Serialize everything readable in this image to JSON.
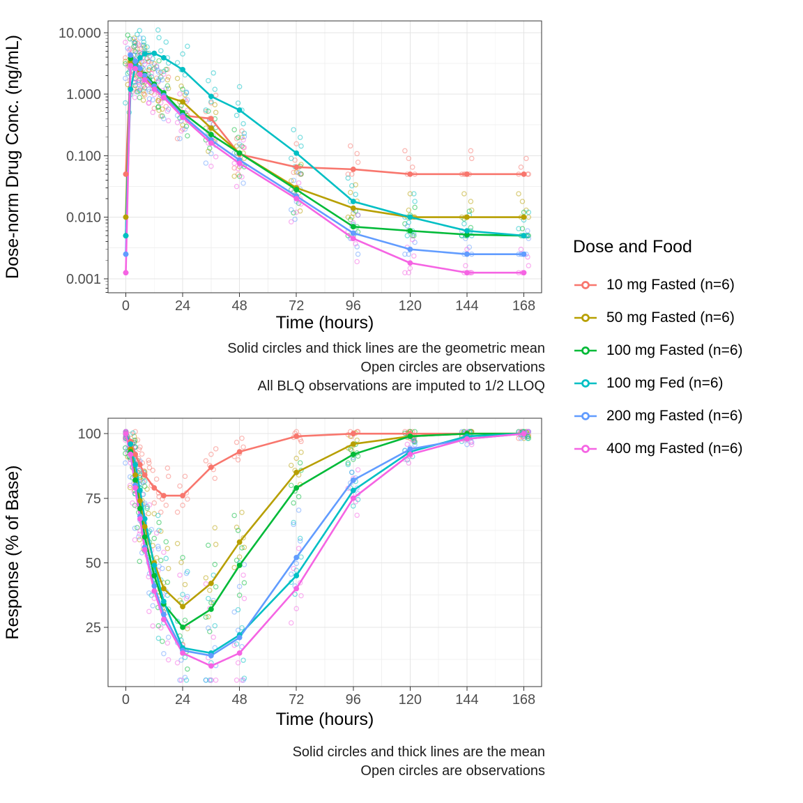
{
  "legend": {
    "title": "Dose and Food",
    "entries": [
      {
        "label": "10 mg Fasted (n=6)",
        "color": "#F8766D"
      },
      {
        "label": "50 mg Fasted (n=6)",
        "color": "#B79F00"
      },
      {
        "label": "100 mg Fasted (n=6)",
        "color": "#00BA38"
      },
      {
        "label": "100 mg Fed (n=6)",
        "color": "#00BFC4"
      },
      {
        "label": "200 mg Fasted (n=6)",
        "color": "#619CFF"
      },
      {
        "label": "400 mg Fasted (n=6)",
        "color": "#F564E3"
      }
    ]
  },
  "chart_data": [
    {
      "type": "line",
      "panel": "concentration",
      "title": "",
      "xlabel": "Time (hours)",
      "ylabel": "Dose-norm Drug Conc. (ng/mL)",
      "yscale": "log10",
      "xlim": [
        -7.5,
        175.5
      ],
      "ylim": [
        0.00059,
        15.5
      ],
      "x_ticks": [
        0,
        24,
        48,
        72,
        96,
        120,
        144,
        168
      ],
      "x_minor_ticks": [
        12,
        36,
        60,
        84,
        108,
        132,
        156
      ],
      "y_ticks": [
        10,
        1,
        0.1,
        0.01,
        0.001
      ],
      "y_tick_labels": [
        "10.000",
        "1.000",
        "0.100",
        "0.010",
        "0.001"
      ],
      "grid": true,
      "legend_position": "right",
      "x": [
        0,
        2,
        4,
        6,
        8,
        12,
        16,
        24,
        36,
        48,
        72,
        96,
        120,
        144,
        168
      ],
      "series": [
        {
          "name": "10 mg Fasted (n=6)",
          "color": "#F8766D",
          "values": [
            0.05,
            3.0,
            2.8,
            2.3,
            1.9,
            1.4,
            1.05,
            0.45,
            0.4,
            0.105,
            0.065,
            0.06,
            0.05,
            0.05,
            0.05
          ]
        },
        {
          "name": "50 mg Fasted (n=6)",
          "color": "#B79F00",
          "values": [
            0.01,
            3.4,
            3.0,
            2.4,
            1.9,
            1.3,
            0.95,
            0.75,
            0.28,
            0.11,
            0.03,
            0.014,
            0.01,
            0.01,
            0.01
          ]
        },
        {
          "name": "100 mg Fasted (n=6)",
          "color": "#00BA38",
          "values": [
            0.005,
            3.8,
            3.3,
            2.6,
            2.1,
            1.45,
            1.05,
            0.5,
            0.22,
            0.11,
            0.028,
            0.007,
            0.006,
            0.0052,
            0.005
          ]
        },
        {
          "name": "100 mg Fed (n=6)",
          "color": "#00BFC4",
          "values": [
            0.005,
            1.2,
            2.8,
            3.9,
            4.5,
            4.6,
            3.9,
            2.5,
            0.92,
            0.55,
            0.11,
            0.018,
            0.01,
            0.006,
            0.005
          ]
        },
        {
          "name": "200 mg Fasted (n=6)",
          "color": "#619CFF",
          "values": [
            0.0025,
            4.3,
            3.4,
            2.6,
            2.0,
            1.35,
            0.95,
            0.45,
            0.18,
            0.085,
            0.022,
            0.0055,
            0.003,
            0.0025,
            0.0025
          ]
        },
        {
          "name": "400 mg Fasted (n=6)",
          "color": "#F564E3",
          "values": [
            0.00125,
            2.9,
            2.6,
            2.1,
            1.7,
            1.2,
            0.88,
            0.42,
            0.16,
            0.075,
            0.02,
            0.0045,
            0.0018,
            0.00125,
            0.00125
          ]
        }
      ],
      "captions": [
        "Solid circles and thick lines are the geometric mean",
        "Open circles are observations",
        "All BLQ observations are imputed to 1/2 LLOQ"
      ]
    },
    {
      "type": "line",
      "panel": "response",
      "title": "",
      "xlabel": "Time (hours)",
      "ylabel": "Response (% of Base)",
      "yscale": "linear",
      "xlim": [
        -7.5,
        175.5
      ],
      "ylim": [
        2,
        106
      ],
      "x_ticks": [
        0,
        24,
        48,
        72,
        96,
        120,
        144,
        168
      ],
      "x_minor_ticks": [
        12,
        36,
        60,
        84,
        108,
        132,
        156
      ],
      "y_ticks": [
        25,
        50,
        75,
        100
      ],
      "y_tick_labels": [
        "25",
        "50",
        "75",
        "100"
      ],
      "y_minor_ticks": [
        12.5,
        37.5,
        62.5,
        87.5
      ],
      "grid": true,
      "legend_position": "right",
      "x": [
        0,
        2,
        4,
        6,
        8,
        12,
        16,
        24,
        36,
        48,
        72,
        96,
        120,
        144,
        168
      ],
      "series": [
        {
          "name": "10 mg Fasted (n=6)",
          "color": "#F8766D",
          "values": [
            100,
            97,
            92,
            88,
            84,
            79,
            76,
            76,
            87,
            93,
            99,
            100,
            100,
            100,
            100
          ]
        },
        {
          "name": "50 mg Fasted (n=6)",
          "color": "#B79F00",
          "values": [
            100,
            94,
            84,
            74,
            64,
            50,
            40,
            33,
            42,
            58,
            85,
            96,
            99,
            100,
            100
          ]
        },
        {
          "name": "100 mg Fasted (n=6)",
          "color": "#00BA38",
          "values": [
            100,
            93,
            82,
            71,
            60,
            45,
            34,
            25,
            32,
            49,
            79,
            92,
            99,
            100,
            100
          ]
        },
        {
          "name": "100 mg Fed (n=6)",
          "color": "#00BFC4",
          "values": [
            100,
            96,
            88,
            78,
            67,
            49,
            35,
            17,
            15,
            22,
            45,
            78,
            93,
            99,
            100
          ]
        },
        {
          "name": "200 mg Fasted (n=6)",
          "color": "#619CFF",
          "values": [
            100,
            92,
            80,
            68,
            56,
            41,
            30,
            16,
            14,
            21,
            52,
            82,
            94,
            98,
            100
          ]
        },
        {
          "name": "400 mg Fasted (n=6)",
          "color": "#F564E3",
          "values": [
            100,
            92,
            79,
            67,
            55,
            39,
            28,
            15,
            10,
            15,
            40,
            75,
            92,
            98,
            100
          ]
        }
      ],
      "captions": [
        "Solid circles and thick lines are the mean",
        "Open circles are observations"
      ]
    }
  ],
  "obs_model": {
    "per_point": 6,
    "log_factors": [
      0.42,
      0.6,
      0.82,
      1.0,
      1.3,
      1.8,
      2.4
    ],
    "x_jitter": [
      -2.2,
      -1.2,
      0,
      1.0,
      2.0,
      -0.6,
      1.6
    ],
    "linear_offsets": [
      -1.2,
      -0.7,
      -0.25,
      0.2,
      0.7,
      1.4,
      2.0
    ],
    "linear_spread_base": 1.5,
    "linear_spread_slope": 0.16,
    "clamp_linear": [
      4.5,
      100.8
    ],
    "clamp_log_max": 14
  }
}
